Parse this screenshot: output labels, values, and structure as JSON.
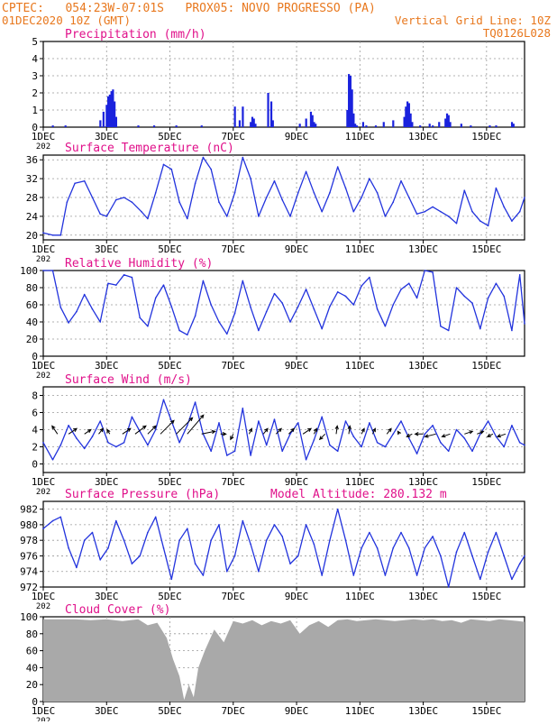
{
  "header": {
    "line1_left": "CPTEC:   054:23W-07:01S   PROX05: NOVO PROGRESSO (PA)",
    "line2_left": "01DEC2020 10Z (GMT)",
    "line2_right": "Vertical Grid Line: 10Z",
    "line3_right": "TQ0126L028",
    "color": "#e8781e"
  },
  "colors": {
    "title": "#e0108a",
    "line": "#2233dd",
    "bar": "#1a22dd",
    "cloud": "#a9a9a9",
    "grid": "#999999",
    "arrow": "#000000"
  },
  "x_tick_labels": [
    "1DEC",
    "3DEC",
    "5DEC",
    "7DEC",
    "9DEC",
    "11DEC",
    "13DEC",
    "15DEC"
  ],
  "year_stub": "202",
  "panels": [
    {
      "key": "precip",
      "title": "Precipitation (mm/h)",
      "extra": "",
      "yticks": [
        0,
        1,
        2,
        3,
        4,
        5
      ]
    },
    {
      "key": "temp",
      "title": "Surface Temperature (nC)",
      "extra": "",
      "yticks": [
        20,
        24,
        28,
        32,
        36
      ]
    },
    {
      "key": "rh",
      "title": "Relative Humidity (%)",
      "extra": "",
      "yticks": [
        0,
        20,
        40,
        60,
        80,
        100
      ]
    },
    {
      "key": "wind",
      "title": "Surface Wind (m/s)",
      "extra": "",
      "yticks": [
        0,
        2,
        4,
        6,
        8
      ]
    },
    {
      "key": "pres",
      "title": "Surface Pressure (hPa)",
      "extra": "Model Altitude: 280.132 m",
      "yticks": [
        972,
        974,
        976,
        978,
        980,
        982
      ]
    },
    {
      "key": "cloud",
      "title": "Cloud Cover (%)",
      "extra": "",
      "yticks": [
        0,
        20,
        40,
        60,
        80,
        100
      ]
    }
  ],
  "chart_data": [
    {
      "type": "bar",
      "title": "Precipitation (mm/h)",
      "ylim": [
        0,
        5
      ],
      "x_unit": "days since 01DEC2020 10Z",
      "x": [
        0.3,
        0.7,
        1.8,
        1.9,
        2.0,
        2.05,
        2.1,
        2.15,
        2.2,
        2.25,
        2.3,
        3.0,
        3.5,
        4.2,
        5.0,
        6.05,
        6.2,
        6.3,
        6.55,
        6.6,
        6.65,
        6.7,
        7.1,
        7.2,
        7.25,
        8.1,
        8.3,
        8.45,
        8.5,
        8.55,
        8.6,
        9.6,
        9.65,
        9.7,
        9.75,
        9.8,
        9.85,
        9.9,
        10.1,
        10.2,
        10.5,
        10.75,
        11.05,
        11.4,
        11.45,
        11.5,
        11.55,
        11.6,
        11.65,
        11.9,
        12.2,
        12.3,
        12.5,
        12.7,
        12.75,
        12.8,
        12.85,
        13.2,
        13.5,
        14.1,
        14.3,
        14.8,
        14.85
      ],
      "values": [
        0.1,
        0.1,
        0.4,
        0.9,
        1.3,
        1.8,
        1.9,
        2.1,
        2.2,
        1.5,
        0.6,
        0.1,
        0.1,
        0.1,
        0.1,
        1.2,
        0.4,
        1.2,
        0.3,
        0.6,
        0.5,
        0.2,
        2.0,
        1.5,
        0.4,
        0.2,
        0.5,
        0.9,
        0.7,
        0.3,
        0.2,
        1.0,
        3.1,
        3.0,
        2.2,
        0.8,
        0.2,
        0.1,
        0.3,
        0.1,
        0.1,
        0.3,
        0.4,
        0.6,
        1.2,
        1.5,
        1.4,
        0.8,
        0.3,
        0.1,
        0.2,
        0.1,
        0.3,
        0.5,
        0.8,
        0.7,
        0.3,
        0.2,
        0.1,
        0.1,
        0.1,
        0.3,
        0.2
      ]
    },
    {
      "type": "line",
      "title": "Surface Temperature (nC)",
      "ylim": [
        19,
        37
      ],
      "x_unit": "days since 01DEC2020 10Z",
      "x": [
        0,
        0.3,
        0.55,
        0.75,
        1.0,
        1.3,
        1.55,
        1.8,
        2.0,
        2.3,
        2.55,
        2.8,
        3.1,
        3.3,
        3.55,
        3.8,
        4.05,
        4.3,
        4.55,
        4.8,
        5.05,
        5.3,
        5.55,
        5.8,
        6.05,
        6.3,
        6.55,
        6.8,
        7.05,
        7.3,
        7.55,
        7.8,
        8.05,
        8.3,
        8.55,
        8.8,
        9.05,
        9.3,
        9.55,
        9.8,
        10.05,
        10.3,
        10.55,
        10.8,
        11.05,
        11.3,
        11.55,
        11.8,
        12.05,
        12.3,
        12.55,
        12.8,
        13.05,
        13.3,
        13.55,
        13.8,
        14.05,
        14.3,
        14.55,
        14.8,
        15.05,
        15.2
      ],
      "values": [
        20.5,
        20,
        20,
        27,
        31,
        31.5,
        28,
        24.5,
        24,
        27.5,
        28,
        27,
        25,
        23.5,
        29,
        35,
        34,
        27,
        23.5,
        31,
        36.5,
        34,
        27,
        24,
        29,
        36.5,
        32,
        24,
        28,
        31.5,
        27.5,
        24,
        29,
        33.5,
        29,
        25,
        29,
        34.5,
        30,
        25,
        28,
        32,
        29,
        24,
        27,
        31.5,
        28,
        24.5,
        25,
        26,
        25,
        24,
        22.5,
        29.5,
        25,
        23,
        22,
        30,
        26,
        23,
        25,
        28
      ]
    },
    {
      "type": "line",
      "title": "Relative Humidity (%)",
      "ylim": [
        0,
        100
      ],
      "x_unit": "days since 01DEC2020 10Z",
      "x": [
        0,
        0.3,
        0.55,
        0.8,
        1.05,
        1.3,
        1.55,
        1.8,
        2.05,
        2.3,
        2.55,
        2.8,
        3.05,
        3.3,
        3.55,
        3.8,
        4.05,
        4.3,
        4.55,
        4.8,
        5.05,
        5.3,
        5.55,
        5.8,
        6.05,
        6.3,
        6.55,
        6.8,
        7.05,
        7.3,
        7.55,
        7.8,
        8.05,
        8.3,
        8.55,
        8.8,
        9.05,
        9.3,
        9.55,
        9.8,
        10.05,
        10.3,
        10.55,
        10.8,
        11.05,
        11.3,
        11.55,
        11.8,
        12.05,
        12.3,
        12.55,
        12.8,
        13.05,
        13.3,
        13.55,
        13.8,
        14.05,
        14.3,
        14.55,
        14.8,
        15.05,
        15.2
      ],
      "values": [
        100,
        100,
        57,
        39,
        52,
        72,
        55,
        40,
        85,
        83,
        95,
        92,
        45,
        35,
        68,
        83,
        58,
        30,
        25,
        47,
        88,
        60,
        40,
        26,
        50,
        88,
        57,
        30,
        52,
        73,
        62,
        40,
        58,
        78,
        55,
        32,
        58,
        75,
        70,
        60,
        82,
        92,
        55,
        35,
        60,
        78,
        85,
        68,
        100,
        98,
        35,
        30,
        80,
        70,
        62,
        32,
        68,
        85,
        70,
        30,
        95,
        38
      ]
    },
    {
      "type": "line",
      "title": "Surface Wind (m/s)",
      "ylim": [
        -1,
        9
      ],
      "x_unit": "days since 01DEC2020 10Z",
      "x": [
        0,
        0.3,
        0.55,
        0.8,
        1.05,
        1.3,
        1.55,
        1.8,
        2.05,
        2.3,
        2.55,
        2.8,
        3.05,
        3.3,
        3.55,
        3.8,
        4.05,
        4.3,
        4.55,
        4.8,
        5.05,
        5.3,
        5.55,
        5.8,
        6.05,
        6.3,
        6.55,
        6.8,
        7.05,
        7.3,
        7.55,
        7.8,
        8.05,
        8.3,
        8.55,
        8.8,
        9.05,
        9.3,
        9.55,
        9.8,
        10.05,
        10.3,
        10.55,
        10.8,
        11.05,
        11.3,
        11.55,
        11.8,
        12.05,
        12.3,
        12.55,
        12.8,
        13.05,
        13.3,
        13.55,
        13.8,
        14.05,
        14.3,
        14.55,
        14.8,
        15.05,
        15.2
      ],
      "values": [
        2.5,
        0.5,
        2.2,
        4.5,
        3.0,
        1.8,
        3.2,
        5.0,
        2.5,
        2.0,
        2.5,
        5.5,
        3.8,
        2.2,
        4.0,
        7.5,
        5.0,
        2.5,
        4.5,
        7.2,
        3.5,
        1.5,
        4.8,
        1.0,
        1.5,
        6.5,
        1.0,
        5.0,
        2.2,
        5.2,
        1.5,
        3.5,
        4.8,
        0.5,
        2.8,
        5.5,
        2.2,
        1.5,
        5.0,
        3.2,
        2.0,
        4.8,
        2.5,
        2.0,
        3.5,
        5.0,
        3.0,
        1.2,
        3.5,
        4.5,
        2.5,
        1.5,
        4.0,
        3.0,
        1.5,
        3.5,
        5.0,
        3.2,
        2.0,
        4.5,
        2.5,
        2.2
      ],
      "arrows": {
        "x": [
          0.45,
          0.8,
          1.3,
          1.75,
          2.1,
          2.5,
          2.9,
          3.3,
          3.7,
          4.2,
          4.55,
          5.0,
          5.6,
          6.0,
          6.5,
          6.95,
          7.35,
          7.75,
          8.2,
          8.55,
          8.9,
          9.25,
          9.65,
          10.05,
          10.4,
          10.85,
          11.25,
          11.65,
          12.0,
          12.4,
          12.85,
          13.3,
          13.7,
          14.2,
          14.6
        ],
        "u": [
          -1.0,
          1.5,
          1.2,
          0.8,
          -0.5,
          1.5,
          2.0,
          1.5,
          2.5,
          3.0,
          3.0,
          2.5,
          1.0,
          -0.5,
          0.5,
          0.8,
          1.0,
          1.0,
          1.5,
          0.5,
          -1.0,
          0.2,
          0.2,
          0.5,
          0.5,
          0.8,
          -0.3,
          -1.0,
          -1.5,
          -2.0,
          -1.5,
          1.5,
          1.2,
          -1.0,
          -1.5
        ],
        "v": [
          1.5,
          1.0,
          0.8,
          1.0,
          0.8,
          1.0,
          1.5,
          1.5,
          2.5,
          3.0,
          3.5,
          0.5,
          0.0,
          -1.0,
          1.0,
          1.0,
          1.0,
          1.0,
          1.0,
          1.0,
          -1.0,
          1.5,
          1.5,
          1.0,
          1.0,
          1.0,
          0.5,
          -0.5,
          0.0,
          -0.5,
          -0.5,
          0.5,
          0.5,
          -0.5,
          -0.5
        ]
      }
    },
    {
      "type": "line",
      "title": "Surface Pressure (hPa)",
      "ylim": [
        972,
        983
      ],
      "x_unit": "days since 01DEC2020 10Z",
      "x": [
        0,
        0.3,
        0.55,
        0.8,
        1.05,
        1.3,
        1.55,
        1.8,
        2.05,
        2.3,
        2.55,
        2.8,
        3.05,
        3.3,
        3.55,
        3.8,
        4.05,
        4.3,
        4.55,
        4.8,
        5.05,
        5.3,
        5.55,
        5.8,
        6.05,
        6.3,
        6.55,
        6.8,
        7.05,
        7.3,
        7.55,
        7.8,
        8.05,
        8.3,
        8.55,
        8.8,
        9.05,
        9.3,
        9.55,
        9.8,
        10.05,
        10.3,
        10.55,
        10.8,
        11.05,
        11.3,
        11.55,
        11.8,
        12.05,
        12.3,
        12.55,
        12.8,
        13.05,
        13.3,
        13.55,
        13.8,
        14.05,
        14.3,
        14.55,
        14.8,
        15.05,
        15.2
      ],
      "values": [
        979.5,
        980.5,
        981,
        977,
        974.5,
        978,
        979,
        975.5,
        977,
        980.5,
        978,
        975,
        976,
        979,
        981,
        977,
        973,
        978,
        979.5,
        975,
        973.5,
        978,
        980,
        974,
        976,
        980.5,
        977.5,
        974,
        978,
        980,
        978.5,
        975,
        976,
        980,
        977.5,
        973.5,
        978,
        982,
        978,
        973.5,
        977,
        979,
        977,
        973.5,
        977,
        979,
        977,
        973.5,
        977,
        978.5,
        976,
        972,
        976.5,
        979,
        976,
        973,
        976.5,
        979,
        976,
        973,
        975,
        976
      ]
    },
    {
      "type": "area",
      "title": "Cloud Cover (%)",
      "ylim": [
        0,
        100
      ],
      "x_unit": "days since 01DEC2020 10Z",
      "x": [
        0,
        0.5,
        1.0,
        1.5,
        2.0,
        2.5,
        3.0,
        3.3,
        3.6,
        3.9,
        4.1,
        4.3,
        4.45,
        4.6,
        4.75,
        4.9,
        5.1,
        5.4,
        5.7,
        6.0,
        6.3,
        6.6,
        6.9,
        7.2,
        7.5,
        7.8,
        8.1,
        8.4,
        8.7,
        9.0,
        9.3,
        9.6,
        9.9,
        10.2,
        10.5,
        10.8,
        11.1,
        11.4,
        11.7,
        12.0,
        12.3,
        12.6,
        12.9,
        13.2,
        13.5,
        13.8,
        14.1,
        14.4,
        14.7,
        15.0,
        15.2
      ],
      "values": [
        97,
        97,
        97,
        96,
        97,
        95,
        97,
        90,
        93,
        75,
        50,
        30,
        2,
        20,
        5,
        40,
        60,
        85,
        70,
        95,
        92,
        96,
        90,
        95,
        92,
        96,
        80,
        90,
        95,
        88,
        96,
        97,
        95,
        96,
        97,
        96,
        95,
        96,
        97,
        96,
        97,
        95,
        96,
        93,
        97,
        96,
        95,
        97,
        96,
        95,
        94
      ]
    }
  ]
}
